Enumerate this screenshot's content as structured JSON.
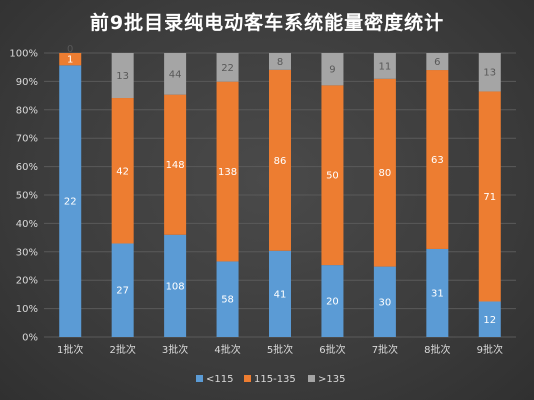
{
  "chart_data": {
    "type": "bar",
    "stacked": "percent",
    "title": "前9批目录纯电动客车系统能量密度统计",
    "categories": [
      "1批次",
      "2批次",
      "3批次",
      "4批次",
      "5批次",
      "6批次",
      "7批次",
      "8批次",
      "9批次"
    ],
    "series": [
      {
        "name": "<115",
        "color": "#5b9bd5",
        "values": [
          22,
          27,
          108,
          58,
          41,
          20,
          30,
          31,
          12
        ]
      },
      {
        "name": "115-135",
        "color": "#ed7d31",
        "values": [
          1,
          42,
          148,
          138,
          86,
          50,
          80,
          63,
          71
        ]
      },
      {
        "name": ">135",
        "color": "#a5a5a5",
        "values": [
          0,
          13,
          44,
          22,
          8,
          9,
          11,
          6,
          13
        ]
      }
    ],
    "yticks": [
      "0%",
      "10%",
      "20%",
      "30%",
      "40%",
      "50%",
      "60%",
      "70%",
      "80%",
      "90%",
      "100%"
    ],
    "ylim": [
      0,
      100
    ],
    "grid": true,
    "legend": "bottom"
  }
}
